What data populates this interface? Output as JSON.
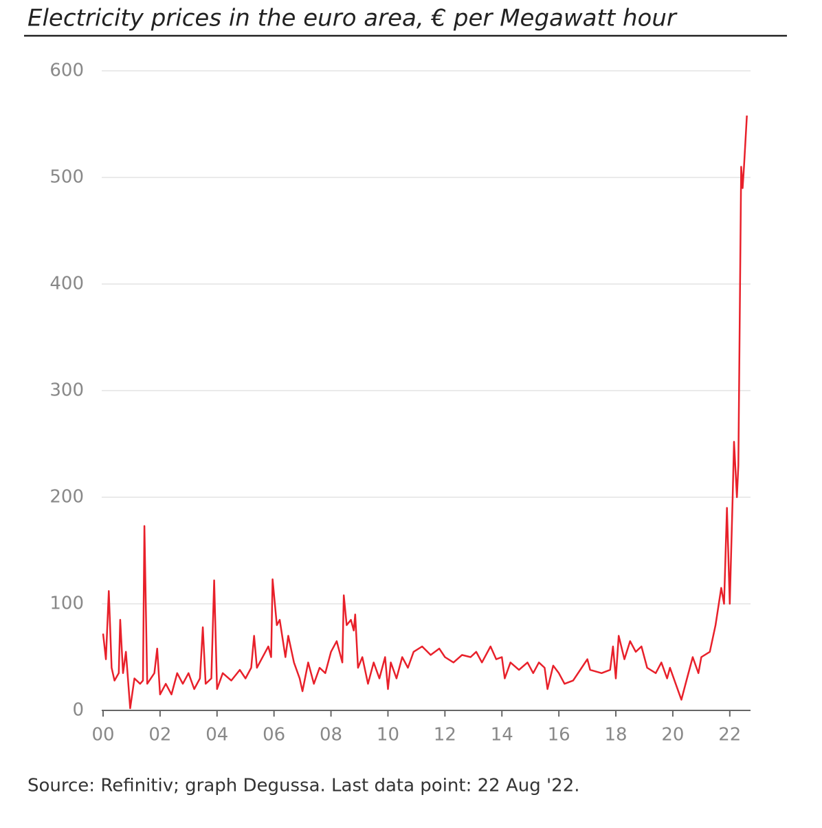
{
  "chart_data": {
    "type": "line",
    "title": "Electricity prices in the euro area, € per Megawatt hour",
    "source": "Source: Refinitiv; graph Degussa. Last data point: 22 Aug '22.",
    "x": [
      2000.0,
      2000.1,
      2000.2,
      2000.3,
      2000.4,
      2000.55,
      2000.6,
      2000.7,
      2000.8,
      2000.9,
      2000.95,
      2001.1,
      2001.3,
      2001.4,
      2001.45,
      2001.55,
      2001.8,
      2001.9,
      2002.0,
      2002.2,
      2002.4,
      2002.6,
      2002.8,
      2003.0,
      2003.2,
      2003.4,
      2003.5,
      2003.6,
      2003.8,
      2003.9,
      2004.0,
      2004.2,
      2004.5,
      2004.8,
      2005.0,
      2005.2,
      2005.3,
      2005.4,
      2005.7,
      2005.8,
      2005.9,
      2005.95,
      2006.1,
      2006.2,
      2006.4,
      2006.5,
      2006.7,
      2006.9,
      2007.0,
      2007.2,
      2007.4,
      2007.6,
      2007.8,
      2008.0,
      2008.2,
      2008.4,
      2008.45,
      2008.55,
      2008.7,
      2008.8,
      2008.85,
      2008.95,
      2009.1,
      2009.3,
      2009.5,
      2009.7,
      2009.9,
      2010.0,
      2010.1,
      2010.3,
      2010.5,
      2010.7,
      2010.9,
      2011.2,
      2011.5,
      2011.8,
      2012.0,
      2012.3,
      2012.6,
      2012.9,
      2013.1,
      2013.3,
      2013.6,
      2013.8,
      2014.0,
      2014.1,
      2014.3,
      2014.6,
      2014.9,
      2015.1,
      2015.3,
      2015.5,
      2015.6,
      2015.8,
      2016.0,
      2016.2,
      2016.5,
      2016.8,
      2017.0,
      2017.1,
      2017.5,
      2017.8,
      2017.9,
      2018.0,
      2018.1,
      2018.3,
      2018.5,
      2018.7,
      2018.9,
      2019.1,
      2019.4,
      2019.6,
      2019.8,
      2019.9,
      2020.1,
      2020.3,
      2020.5,
      2020.7,
      2020.9,
      2021.0,
      2021.3,
      2021.5,
      2021.7,
      2021.8,
      2021.9,
      2022.0,
      2022.1,
      2022.15,
      2022.25,
      2022.3,
      2022.4,
      2022.45,
      2022.5,
      2022.6
    ],
    "series": [
      {
        "name": "Electricity price",
        "color": "#e8202a",
        "values": [
          72,
          48,
          112,
          40,
          28,
          35,
          85,
          35,
          55,
          20,
          2,
          30,
          25,
          28,
          173,
          25,
          35,
          58,
          15,
          25,
          15,
          35,
          25,
          35,
          20,
          30,
          78,
          25,
          30,
          122,
          20,
          35,
          28,
          38,
          30,
          40,
          70,
          40,
          55,
          60,
          50,
          123,
          80,
          85,
          50,
          70,
          45,
          30,
          18,
          45,
          25,
          40,
          35,
          55,
          65,
          45,
          108,
          80,
          85,
          75,
          90,
          40,
          50,
          25,
          45,
          30,
          50,
          20,
          45,
          30,
          50,
          40,
          55,
          60,
          52,
          58,
          50,
          45,
          52,
          50,
          55,
          45,
          60,
          48,
          50,
          30,
          45,
          38,
          45,
          35,
          45,
          40,
          20,
          42,
          35,
          25,
          28,
          40,
          48,
          38,
          35,
          38,
          60,
          30,
          70,
          48,
          65,
          55,
          60,
          40,
          35,
          45,
          30,
          40,
          25,
          10,
          30,
          50,
          35,
          50,
          55,
          80,
          115,
          100,
          190,
          100,
          200,
          252,
          200,
          230,
          510,
          490,
          510,
          558
        ]
      }
    ],
    "xlim": [
      2000,
      2022.68
    ],
    "ylim": [
      0,
      600
    ],
    "xticks": [
      {
        "value": 2000,
        "label": "00"
      },
      {
        "value": 2002,
        "label": "02"
      },
      {
        "value": 2004,
        "label": "04"
      },
      {
        "value": 2006,
        "label": "06"
      },
      {
        "value": 2008,
        "label": "08"
      },
      {
        "value": 2010,
        "label": "10"
      },
      {
        "value": 2012,
        "label": "12"
      },
      {
        "value": 2014,
        "label": "14"
      },
      {
        "value": 2016,
        "label": "16"
      },
      {
        "value": 2018,
        "label": "18"
      },
      {
        "value": 2020,
        "label": "20"
      },
      {
        "value": 2022,
        "label": "22"
      }
    ],
    "yticks": [
      0,
      100,
      200,
      300,
      400,
      500,
      600
    ],
    "grid": true
  }
}
